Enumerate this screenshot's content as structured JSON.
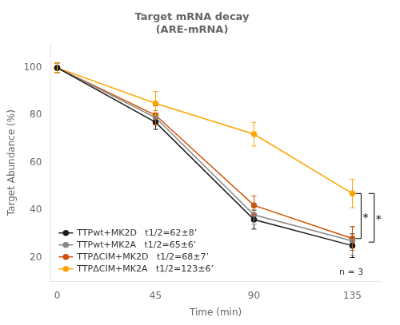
{
  "chart_data": {
    "type": "line",
    "title": [
      "Target mRNA decay",
      "(ARE-mRNA)"
    ],
    "xlabel": "Time (min)",
    "ylabel": "Target Abundance (%)",
    "x": [
      0,
      45,
      90,
      135
    ],
    "series": [
      {
        "name": "TTPwt+MK2D   t1/2=62±8’",
        "color": "#1a1a1a",
        "marker": "o",
        "values": [
          100,
          77,
          36,
          25
        ],
        "errors": [
          2,
          3,
          4,
          5
        ]
      },
      {
        "name": "TTPwt+MK2A   t1/2=65±6’",
        "color": "#888888",
        "marker": "o",
        "values": [
          100,
          79,
          38,
          27
        ],
        "errors": [
          2,
          3,
          4,
          6
        ]
      },
      {
        "name": "TTPΔCIM+MK2D   t1/2=68±7’",
        "color": "#D05000",
        "marker": "o",
        "values": [
          100,
          80,
          42,
          28
        ],
        "errors": [
          2,
          4,
          4,
          5
        ]
      },
      {
        "name": "TTPΔCIM+MK2A   t1/2=123±6’",
        "color": "#FFA500",
        "marker": "o",
        "values": [
          100,
          85,
          72,
          47
        ],
        "errors": [
          2,
          5,
          5,
          6
        ]
      }
    ],
    "xlim": [
      -3,
      148
    ],
    "xticks": [
      0,
      45,
      90,
      135
    ],
    "ylim": [
      10,
      110
    ],
    "yticks": [
      20,
      40,
      60,
      80,
      100
    ],
    "grid": false,
    "legend": "lower left",
    "annotations": [
      {
        "text": "*",
        "x": 139,
        "bracket": [
          28,
          47
        ]
      },
      {
        "text": "*",
        "x": 145,
        "bracket": [
          26.5,
          47
        ]
      },
      {
        "text": "n = 3",
        "x": 140,
        "y": 12
      }
    ]
  }
}
